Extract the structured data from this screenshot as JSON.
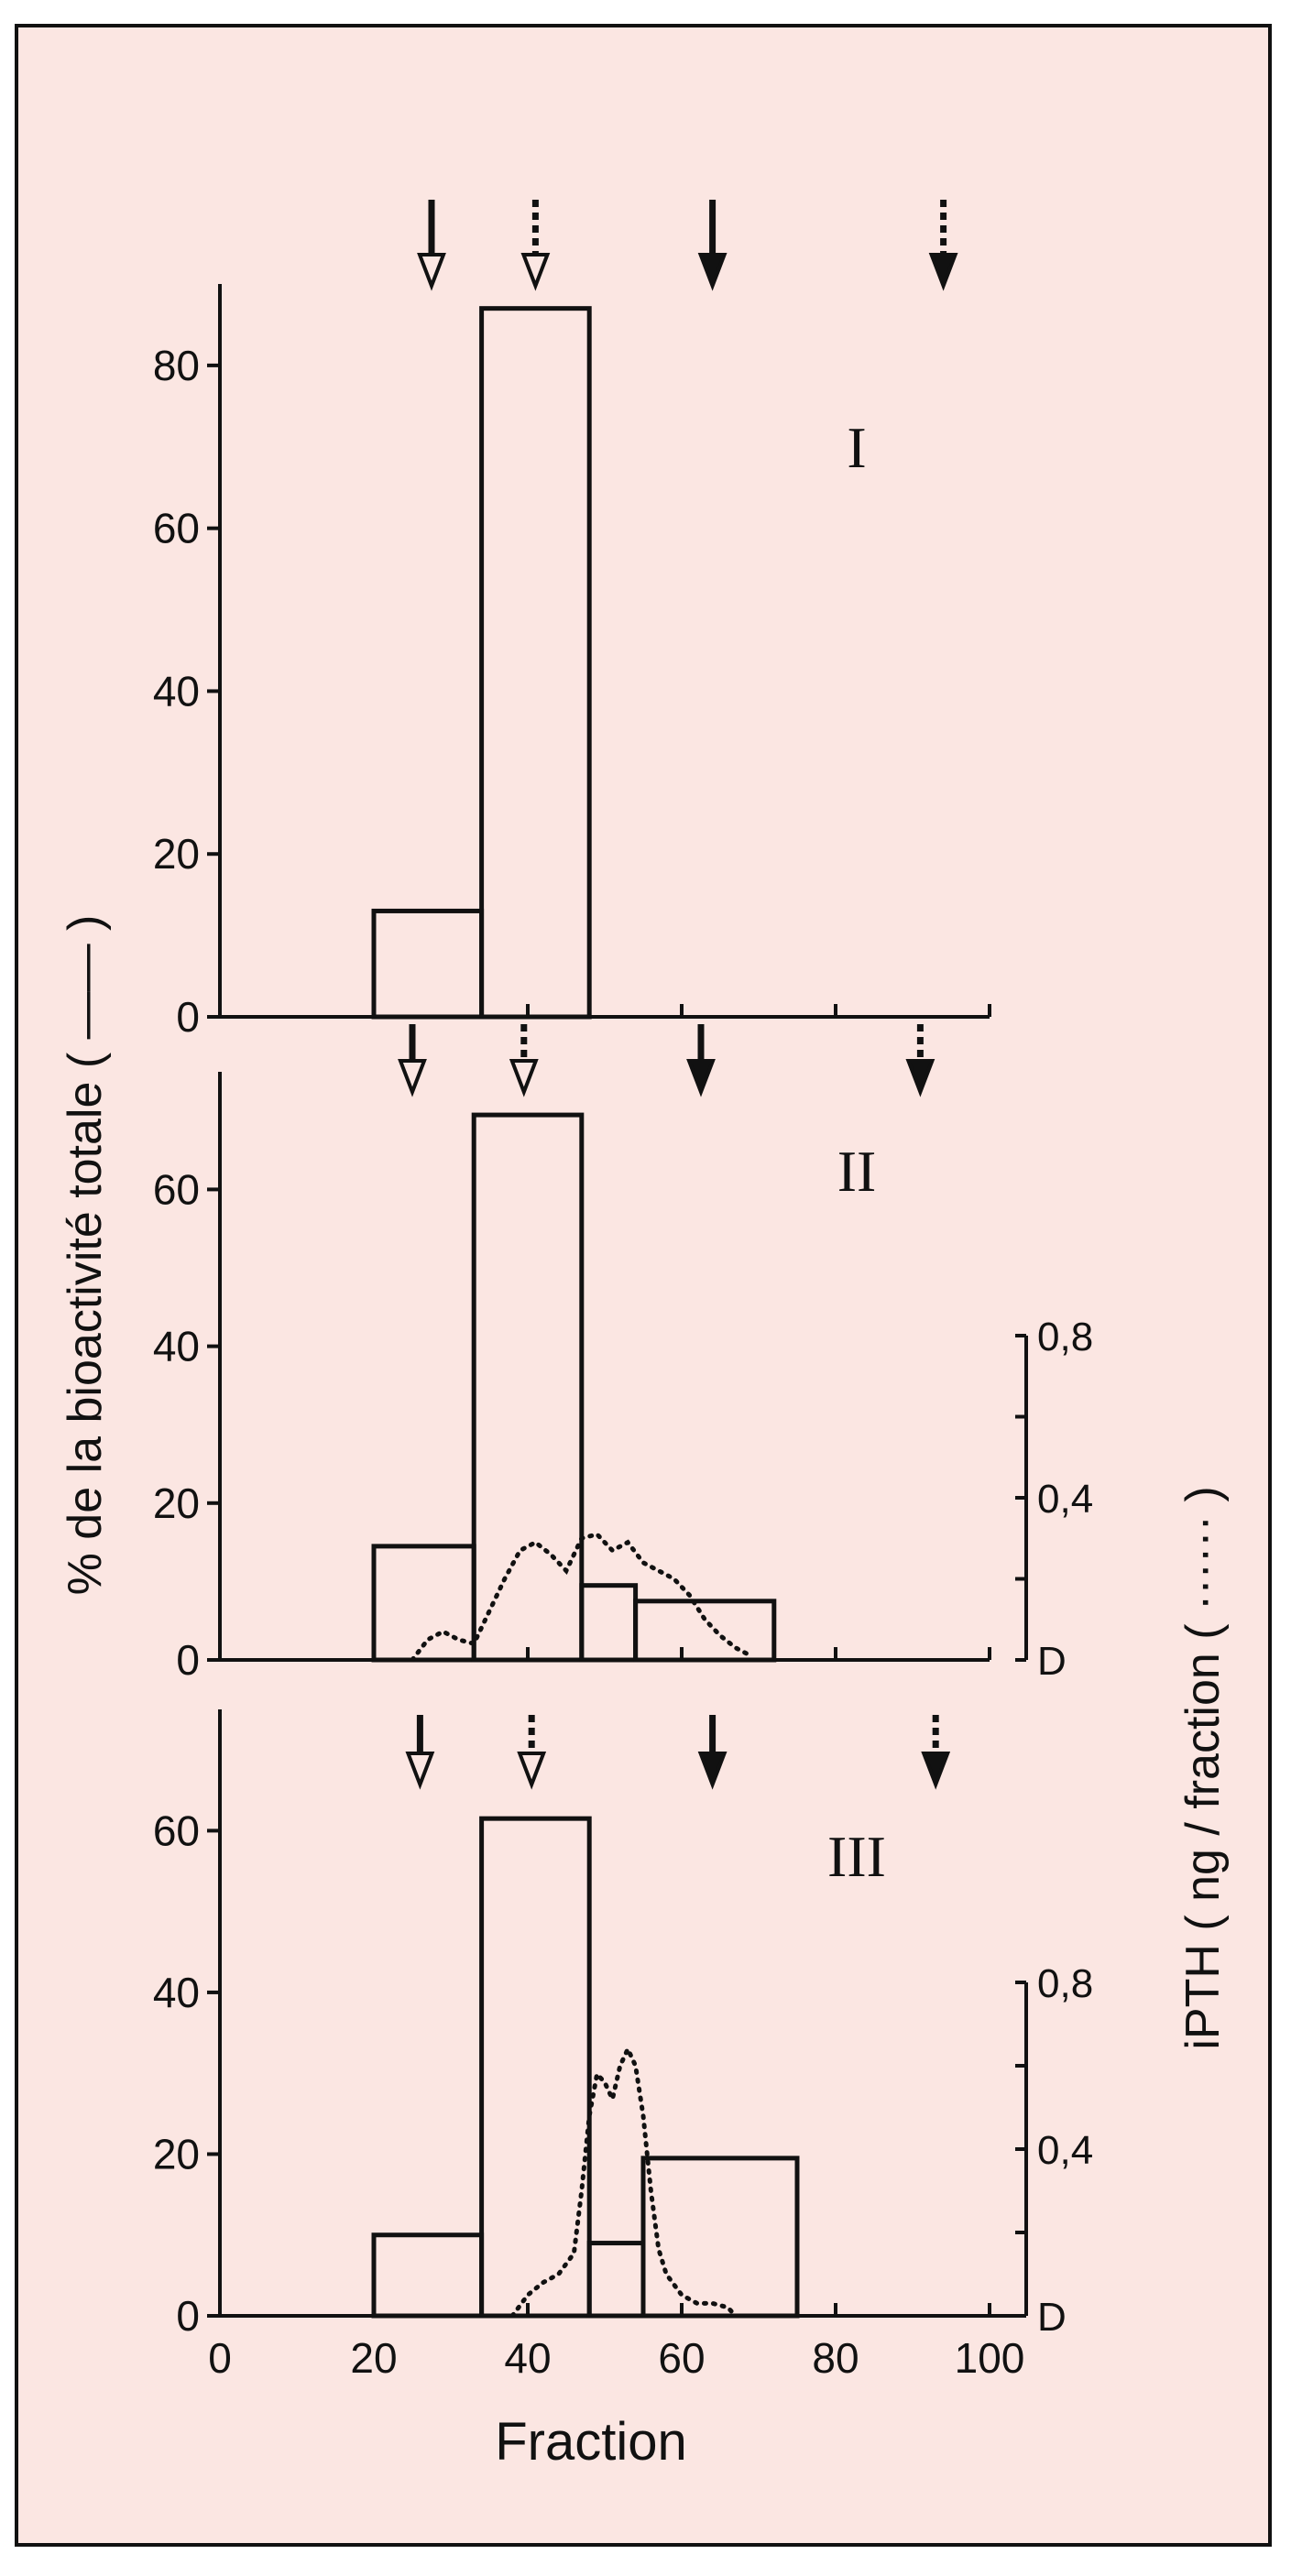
{
  "figure": {
    "background": "#fbe6e2",
    "ink": "#111111",
    "ylabel_left": "% de la bioactivité totale ( —— )",
    "ylabel_right": "iPTH ( ng / fraction ( ······ )",
    "xlabel": "Fraction"
  },
  "chart_data": [
    {
      "type": "bar",
      "panel": "I",
      "xlim": [
        0,
        100
      ],
      "ylim": [
        0,
        90
      ],
      "yticks": [
        0,
        20,
        40,
        60,
        80
      ],
      "bins": [
        {
          "x0": 20,
          "x1": 34,
          "value": 13
        },
        {
          "x0": 34,
          "x1": 48,
          "value": 87
        }
      ],
      "markers": [
        {
          "x": 27.5,
          "style": "solid",
          "head": "open"
        },
        {
          "x": 41,
          "style": "dashed",
          "head": "open"
        },
        {
          "x": 64,
          "style": "solid",
          "head": "filled"
        },
        {
          "x": 94,
          "style": "dashed",
          "head": "filled"
        }
      ]
    },
    {
      "type": "bar",
      "panel": "II",
      "xlim": [
        0,
        100
      ],
      "ylim": [
        0,
        75
      ],
      "yticks": [
        0,
        20,
        40,
        60
      ],
      "right_axis": {
        "ylim": [
          0,
          0.8
        ],
        "ticks": [
          "D",
          "0,4",
          "0,8"
        ],
        "tick_values": [
          0,
          0.4,
          0.8
        ]
      },
      "bins": [
        {
          "x0": 20,
          "x1": 33,
          "value": 14.5
        },
        {
          "x0": 33,
          "x1": 47,
          "value": 69.5
        },
        {
          "x0": 47,
          "x1": 54,
          "value": 9.5
        },
        {
          "x0": 54,
          "x1": 72,
          "value": 7.5
        }
      ],
      "ipth_series": {
        "x": [
          25,
          27,
          29,
          31,
          33,
          35,
          37,
          39,
          41,
          43,
          45,
          47,
          49,
          51,
          53,
          55,
          57,
          59,
          61,
          63,
          65,
          67,
          69
        ],
        "y": [
          0,
          0.05,
          0.07,
          0.05,
          0.04,
          0.12,
          0.2,
          0.27,
          0.29,
          0.26,
          0.22,
          0.3,
          0.31,
          0.27,
          0.29,
          0.24,
          0.22,
          0.2,
          0.16,
          0.1,
          0.06,
          0.03,
          0.01
        ]
      },
      "markers": [
        {
          "x": 25,
          "style": "solid",
          "head": "open"
        },
        {
          "x": 39.5,
          "style": "dashed",
          "head": "open"
        },
        {
          "x": 62.5,
          "style": "solid",
          "head": "filled"
        },
        {
          "x": 91,
          "style": "dashed",
          "head": "filled"
        }
      ]
    },
    {
      "type": "bar",
      "panel": "III",
      "xlim": [
        0,
        100
      ],
      "ylim": [
        0,
        75
      ],
      "yticks": [
        0,
        20,
        40,
        60
      ],
      "xticks": [
        0,
        20,
        40,
        60,
        80,
        100
      ],
      "right_axis": {
        "ylim": [
          0,
          0.8
        ],
        "ticks": [
          "D",
          "0,4",
          "0,8"
        ],
        "tick_values": [
          0,
          0.4,
          0.8
        ]
      },
      "bins": [
        {
          "x0": 20,
          "x1": 34,
          "value": 10
        },
        {
          "x0": 34,
          "x1": 48,
          "value": 61.5
        },
        {
          "x0": 48,
          "x1": 55,
          "value": 9
        },
        {
          "x0": 55,
          "x1": 75,
          "value": 19.5
        }
      ],
      "ipth_series": {
        "x": [
          38,
          40,
          42,
          44,
          46,
          47,
          48,
          49,
          50,
          51,
          52,
          53,
          54,
          55,
          56,
          57,
          58,
          60,
          62,
          64,
          66,
          67
        ],
        "y": [
          0,
          0.05,
          0.08,
          0.1,
          0.15,
          0.3,
          0.48,
          0.58,
          0.56,
          0.52,
          0.6,
          0.64,
          0.6,
          0.48,
          0.3,
          0.16,
          0.1,
          0.05,
          0.03,
          0.03,
          0.02,
          0.0
        ]
      },
      "markers": [
        {
          "x": 26,
          "style": "solid",
          "head": "open"
        },
        {
          "x": 40.5,
          "style": "dashed",
          "head": "open"
        },
        {
          "x": 64,
          "style": "solid",
          "head": "filled"
        },
        {
          "x": 93,
          "style": "dashed",
          "head": "filled"
        }
      ]
    }
  ]
}
